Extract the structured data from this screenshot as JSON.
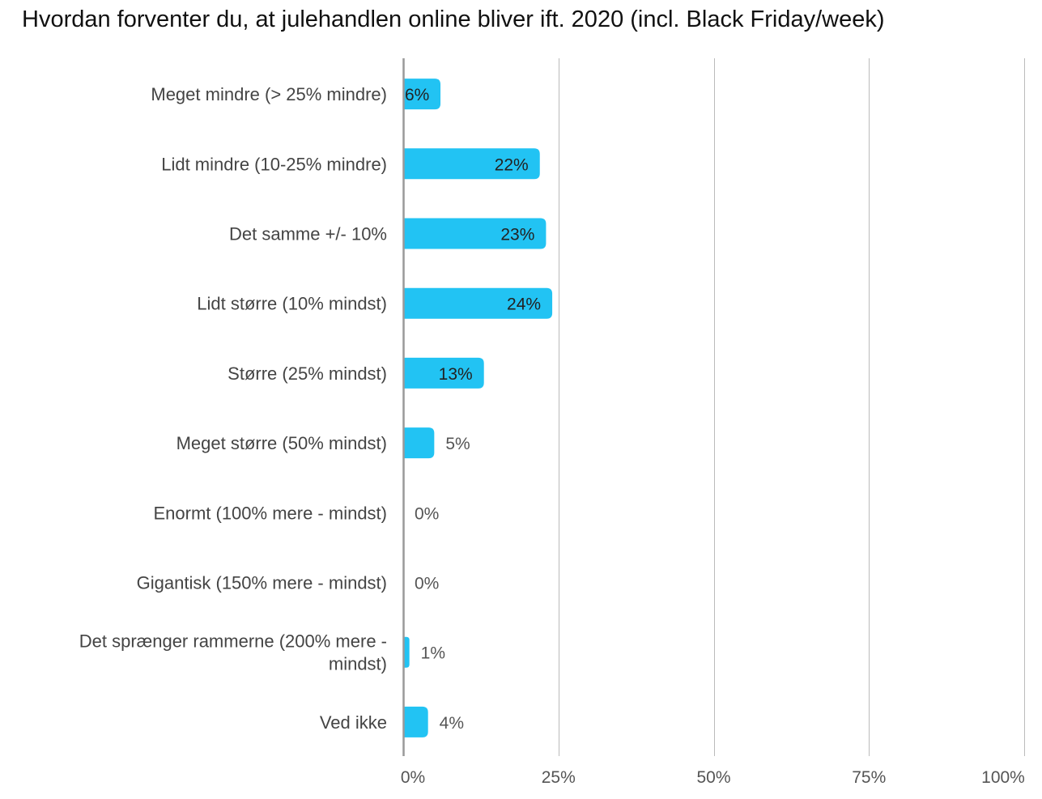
{
  "chart_data": {
    "type": "bar",
    "orientation": "horizontal",
    "title": "Hvordan forventer du, at julehandlen online bliver ift. 2020 (incl. Black Friday/week)",
    "categories": [
      "Meget mindre (> 25% mindre)",
      "Lidt mindre (10-25% mindre)",
      "Det samme +/- 10%",
      "Lidt større (10% mindst)",
      "Større (25% mindst)",
      "Meget større (50% mindst)",
      "Enormt (100% mere - mindst)",
      "Gigantisk (150% mere - mindst)",
      "Det sprænger rammerne (200% mere - mindst)",
      "Ved ikke"
    ],
    "values": [
      6,
      22,
      23,
      24,
      13,
      5,
      0,
      0,
      1,
      4
    ],
    "data_labels": [
      "6%",
      "22%",
      "23%",
      "24%",
      "13%",
      "5%",
      "0%",
      "0%",
      "1%",
      "4%"
    ],
    "xlim": [
      0,
      100
    ],
    "x_ticks": [
      0,
      25,
      50,
      75,
      100
    ],
    "x_tick_labels": [
      "0%",
      "25%",
      "50%",
      "75%",
      "100%"
    ],
    "grid": "vertical",
    "legend": "none",
    "colors": {
      "bar": "#22c3f3",
      "grid": "#bbbbbb",
      "axis": "#999999",
      "label_inside": "#222222",
      "label_outside": "#555555",
      "category_text": "#444444"
    }
  }
}
